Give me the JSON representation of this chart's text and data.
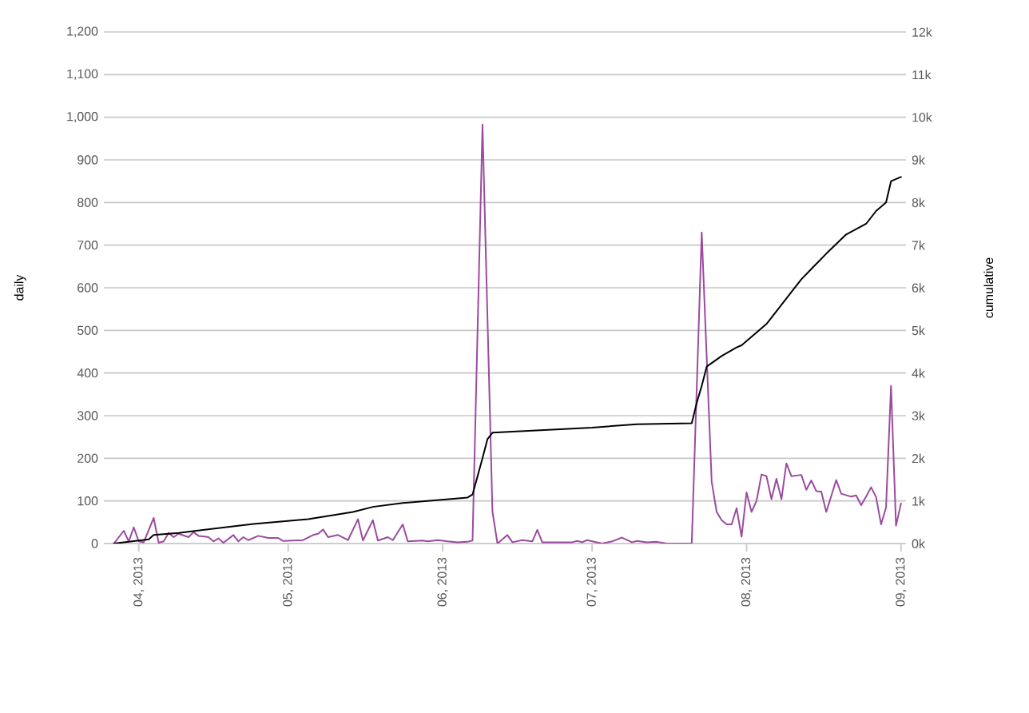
{
  "chart_data": {
    "type": "line",
    "ylabel": "daily",
    "y2label": "cumulative",
    "xlim": [
      "2013-03-25",
      "2013-09-02"
    ],
    "xticks": [
      {
        "value": "2013-04-01",
        "label": "04, 2013"
      },
      {
        "value": "2013-05-01",
        "label": "05, 2013"
      },
      {
        "value": "2013-06-01",
        "label": "06, 2013"
      },
      {
        "value": "2013-07-01",
        "label": "07, 2013"
      },
      {
        "value": "2013-08-01",
        "label": "08, 2013"
      },
      {
        "value": "2013-09-01",
        "label": "09, 2013"
      }
    ],
    "ylim": [
      0,
      1200
    ],
    "yticks": [
      0,
      100,
      200,
      300,
      400,
      500,
      600,
      700,
      800,
      900,
      {
        "value": 1000,
        "label": "1,000"
      },
      {
        "value": 1100,
        "label": "1,100"
      },
      {
        "value": 1200,
        "label": "1,200"
      }
    ],
    "y2lim": [
      0,
      12000
    ],
    "y2ticks": [
      {
        "value": 0,
        "label": "0k"
      },
      {
        "value": 1000,
        "label": "1k"
      },
      {
        "value": 2000,
        "label": "2k"
      },
      {
        "value": 3000,
        "label": "3k"
      },
      {
        "value": 4000,
        "label": "4k"
      },
      {
        "value": 5000,
        "label": "5k"
      },
      {
        "value": 6000,
        "label": "6k"
      },
      {
        "value": 7000,
        "label": "7k"
      },
      {
        "value": 8000,
        "label": "8k"
      },
      {
        "value": 9000,
        "label": "9k"
      },
      {
        "value": 10000,
        "label": "10k"
      },
      {
        "value": 11000,
        "label": "11k"
      },
      {
        "value": 12000,
        "label": "12k"
      }
    ],
    "grid": "y",
    "series": [
      {
        "color": "#9b4a9e",
        "x": [
          "2013-03-27",
          "2013-03-29",
          "2013-03-30",
          "2013-03-31",
          "2013-04-01",
          "2013-04-02",
          "2013-04-04",
          "2013-04-05",
          "2013-04-06",
          "2013-04-07",
          "2013-04-08",
          "2013-04-09",
          "2013-04-11",
          "2013-04-12",
          "2013-04-13",
          "2013-04-15",
          "2013-04-16",
          "2013-04-17",
          "2013-04-18",
          "2013-04-20",
          "2013-04-21",
          "2013-04-22",
          "2013-04-23",
          "2013-04-25",
          "2013-04-27",
          "2013-04-29",
          "2013-04-30",
          "2013-05-04",
          "2013-05-06",
          "2013-05-07",
          "2013-05-08",
          "2013-05-09",
          "2013-05-11",
          "2013-05-13",
          "2013-05-15",
          "2013-05-16",
          "2013-05-18",
          "2013-05-19",
          "2013-05-21",
          "2013-05-22",
          "2013-05-24",
          "2013-05-25",
          "2013-05-28",
          "2013-05-29",
          "2013-05-31",
          "2013-06-02",
          "2013-06-04",
          "2013-06-06",
          "2013-06-07",
          "2013-06-09",
          "2013-06-11",
          "2013-06-12",
          "2013-06-14",
          "2013-06-15",
          "2013-06-17",
          "2013-06-19",
          "2013-06-20",
          "2013-06-21",
          "2013-06-27",
          "2013-06-28",
          "2013-06-29",
          "2013-06-30",
          "2013-07-03",
          "2013-07-05",
          "2013-07-07",
          "2013-07-09",
          "2013-07-10",
          "2013-07-12",
          "2013-07-14",
          "2013-07-16",
          "2013-07-20",
          "2013-07-21",
          "2013-07-23",
          "2013-07-25",
          "2013-07-26",
          "2013-07-27",
          "2013-07-28",
          "2013-07-29",
          "2013-07-30",
          "2013-07-31",
          "2013-08-01",
          "2013-08-02",
          "2013-08-03",
          "2013-08-04",
          "2013-08-05",
          "2013-08-06",
          "2013-08-07",
          "2013-08-08",
          "2013-08-09",
          "2013-08-10",
          "2013-08-12",
          "2013-08-13",
          "2013-08-14",
          "2013-08-15",
          "2013-08-16",
          "2013-08-17",
          "2013-08-19",
          "2013-08-20",
          "2013-08-22",
          "2013-08-23",
          "2013-08-24",
          "2013-08-25",
          "2013-08-26",
          "2013-08-27",
          "2013-08-28",
          "2013-08-29",
          "2013-08-30",
          "2013-08-31",
          "2013-09-01"
        ],
        "values": [
          0,
          30,
          5,
          38,
          5,
          3,
          60,
          2,
          5,
          25,
          15,
          23,
          15,
          27,
          18,
          15,
          5,
          12,
          2,
          20,
          5,
          15,
          8,
          18,
          13,
          13,
          6,
          8,
          20,
          23,
          33,
          15,
          20,
          8,
          57,
          7,
          55,
          7,
          15,
          8,
          45,
          5,
          7,
          5,
          8,
          5,
          3,
          4,
          7,
          983,
          75,
          0,
          20,
          3,
          8,
          5,
          32,
          3,
          3,
          6,
          3,
          8,
          0,
          5,
          14,
          3,
          6,
          3,
          4,
          0,
          0,
          0,
          730,
          145,
          74,
          55,
          45,
          45,
          83,
          16,
          120,
          74,
          100,
          162,
          158,
          104,
          152,
          104,
          188,
          158,
          161,
          126,
          148,
          123,
          122,
          74,
          149,
          117,
          110,
          113,
          90,
          110,
          132,
          109,
          45,
          85,
          370,
          42,
          94
        ]
      },
      {
        "color": "#000000",
        "axis": "y2",
        "x": [
          "2013-03-27",
          "2013-04-03",
          "2013-04-04",
          "2013-04-09",
          "2013-04-14",
          "2013-04-24",
          "2013-05-05",
          "2013-05-14",
          "2013-05-18",
          "2013-05-24",
          "2013-06-06",
          "2013-06-07",
          "2013-06-09",
          "2013-06-10",
          "2013-06-11",
          "2013-07-01",
          "2013-07-10",
          "2013-07-21",
          "2013-07-22",
          "2013-07-23",
          "2013-07-24",
          "2013-07-27",
          "2013-07-30",
          "2013-07-31",
          "2013-08-03",
          "2013-08-05",
          "2013-08-08",
          "2013-08-12",
          "2013-08-17",
          "2013-08-21",
          "2013-08-25",
          "2013-08-27",
          "2013-08-29",
          "2013-08-30",
          "2013-09-01"
        ],
        "values": [
          0,
          100,
          200,
          250,
          320,
          460,
          570,
          740,
          860,
          950,
          1080,
          1150,
          2000,
          2450,
          2600,
          2720,
          2800,
          2820,
          3300,
          3700,
          4150,
          4400,
          4600,
          4650,
          4950,
          5150,
          5600,
          6200,
          6800,
          7250,
          7500,
          7800,
          8000,
          8500,
          8600
        ]
      }
    ]
  }
}
